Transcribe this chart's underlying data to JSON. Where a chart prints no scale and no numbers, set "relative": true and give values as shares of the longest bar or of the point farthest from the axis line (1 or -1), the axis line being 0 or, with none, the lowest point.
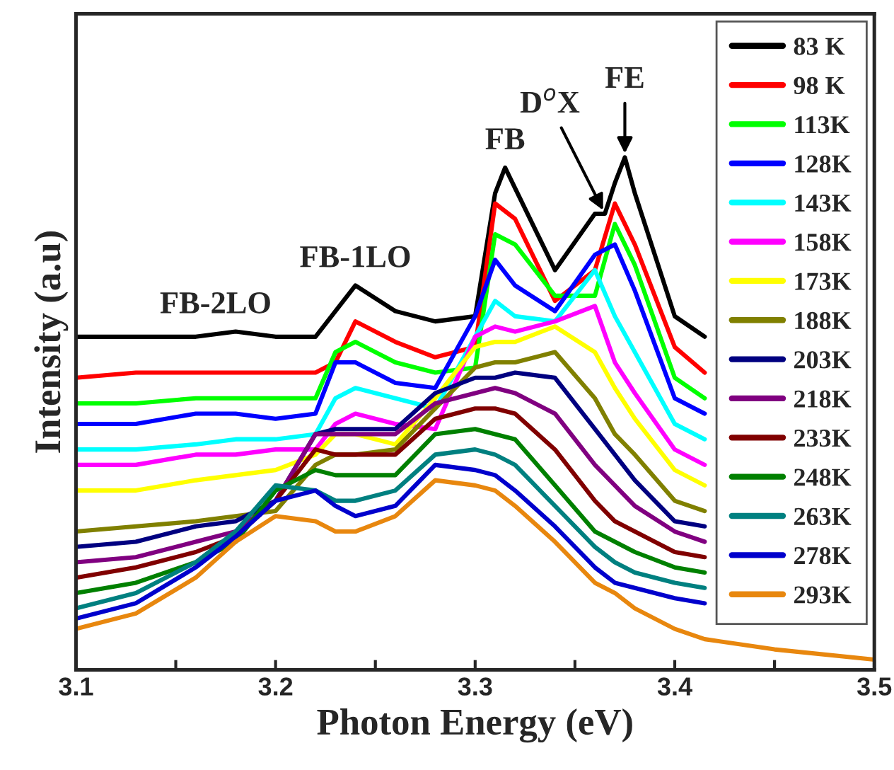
{
  "chart_data": {
    "type": "line",
    "relative": true,
    "xlabel": "Photon Energy (eV)",
    "ylabel": "Intensity (a.u)",
    "xlim": [
      3.1,
      3.5
    ],
    "xticks": [
      3.1,
      {
        "value": 3.15,
        "label": null
      },
      3.2,
      {
        "value": 3.25,
        "label": null
      },
      3.3,
      {
        "value": 3.35,
        "label": null
      },
      3.4,
      {
        "value": 3.45,
        "label": null
      },
      3.5
    ],
    "tick_labels": "x",
    "legend": "top right",
    "grid": false,
    "marker": "none",
    "line_style": "solid",
    "x": [
      3.1,
      3.13,
      3.16,
      3.18,
      3.2,
      3.22,
      3.23,
      3.24,
      3.26,
      3.28,
      3.3,
      3.31,
      3.32,
      3.34,
      3.36,
      3.37,
      3.38,
      3.4,
      3.415
    ],
    "series": [
      {
        "name": "83 K",
        "color": "#000000",
        "x": [
          3.1,
          3.13,
          3.16,
          3.18,
          3.2,
          3.22,
          3.23,
          3.24,
          3.26,
          3.28,
          3.3,
          3.31,
          3.315,
          3.32,
          3.34,
          3.36,
          3.365,
          3.37,
          3.375,
          3.38,
          3.4,
          3.415
        ],
        "values": [
          0.65,
          0.65,
          0.65,
          0.66,
          0.65,
          0.65,
          0.7,
          0.75,
          0.7,
          0.68,
          0.69,
          0.93,
          0.98,
          0.94,
          0.78,
          0.89,
          0.89,
          0.95,
          1.0,
          0.93,
          0.69,
          0.65
        ]
      },
      {
        "name": "98 K",
        "color": "#ff0000",
        "values": [
          0.57,
          0.58,
          0.58,
          0.58,
          0.58,
          0.58,
          0.6,
          0.68,
          0.64,
          0.61,
          0.63,
          0.91,
          0.88,
          0.72,
          0.78,
          0.91,
          0.83,
          0.63,
          0.58
        ]
      },
      {
        "name": "113K",
        "color": "#00ff00",
        "values": [
          0.52,
          0.52,
          0.53,
          0.53,
          0.53,
          0.53,
          0.62,
          0.64,
          0.6,
          0.58,
          0.59,
          0.85,
          0.83,
          0.73,
          0.73,
          0.87,
          0.79,
          0.57,
          0.53
        ]
      },
      {
        "name": "128K",
        "color": "#0000ff",
        "values": [
          0.48,
          0.48,
          0.5,
          0.5,
          0.49,
          0.5,
          0.6,
          0.6,
          0.56,
          0.55,
          0.69,
          0.8,
          0.75,
          0.7,
          0.81,
          0.83,
          0.74,
          0.53,
          0.5
        ]
      },
      {
        "name": "143K",
        "color": "#00ffff",
        "values": [
          0.43,
          0.43,
          0.44,
          0.45,
          0.45,
          0.46,
          0.53,
          0.55,
          0.53,
          0.51,
          0.65,
          0.72,
          0.69,
          0.68,
          0.78,
          0.69,
          0.62,
          0.48,
          0.45
        ]
      },
      {
        "name": "158K",
        "color": "#ff00ff",
        "values": [
          0.4,
          0.4,
          0.42,
          0.42,
          0.43,
          0.43,
          0.48,
          0.5,
          0.48,
          0.47,
          0.65,
          0.67,
          0.66,
          0.68,
          0.71,
          0.6,
          0.54,
          0.43,
          0.4
        ]
      },
      {
        "name": "173K",
        "color": "#ffff00",
        "values": [
          0.35,
          0.35,
          0.37,
          0.38,
          0.39,
          0.42,
          0.46,
          0.46,
          0.44,
          0.53,
          0.63,
          0.64,
          0.64,
          0.67,
          0.62,
          0.55,
          0.49,
          0.39,
          0.36
        ]
      },
      {
        "name": "188K",
        "color": "#808000",
        "values": [
          0.27,
          0.28,
          0.29,
          0.3,
          0.31,
          0.4,
          0.42,
          0.42,
          0.43,
          0.51,
          0.59,
          0.6,
          0.6,
          0.62,
          0.53,
          0.46,
          0.42,
          0.33,
          0.31
        ]
      },
      {
        "name": "203K",
        "color": "#000080",
        "values": [
          0.24,
          0.25,
          0.28,
          0.29,
          0.33,
          0.46,
          0.47,
          0.47,
          0.47,
          0.54,
          0.57,
          0.57,
          0.58,
          0.57,
          0.47,
          0.42,
          0.37,
          0.29,
          0.28
        ]
      },
      {
        "name": "218K",
        "color": "#800080",
        "values": [
          0.21,
          0.22,
          0.25,
          0.27,
          0.33,
          0.46,
          0.46,
          0.46,
          0.46,
          0.52,
          0.54,
          0.55,
          0.54,
          0.5,
          0.4,
          0.36,
          0.32,
          0.27,
          0.25
        ]
      },
      {
        "name": "233K",
        "color": "#800000",
        "values": [
          0.18,
          0.2,
          0.23,
          0.26,
          0.33,
          0.43,
          0.42,
          0.42,
          0.42,
          0.49,
          0.51,
          0.51,
          0.5,
          0.43,
          0.33,
          0.29,
          0.27,
          0.23,
          0.22
        ]
      },
      {
        "name": "248K",
        "color": "#008000",
        "values": [
          0.15,
          0.17,
          0.21,
          0.25,
          0.35,
          0.39,
          0.38,
          0.38,
          0.38,
          0.46,
          0.47,
          0.46,
          0.45,
          0.36,
          0.27,
          0.25,
          0.23,
          0.2,
          0.19
        ]
      },
      {
        "name": "263K",
        "color": "#008080",
        "values": [
          0.12,
          0.15,
          0.21,
          0.27,
          0.36,
          0.35,
          0.33,
          0.33,
          0.35,
          0.42,
          0.43,
          0.42,
          0.4,
          0.32,
          0.24,
          0.21,
          0.19,
          0.17,
          0.16
        ]
      },
      {
        "name": "278K",
        "color": "#0000cc",
        "values": [
          0.1,
          0.13,
          0.2,
          0.26,
          0.33,
          0.35,
          0.32,
          0.3,
          0.32,
          0.4,
          0.39,
          0.38,
          0.35,
          0.28,
          0.2,
          0.17,
          0.16,
          0.14,
          0.13
        ]
      },
      {
        "name": "293K",
        "color": "#e8870e",
        "x": [
          3.1,
          3.13,
          3.16,
          3.18,
          3.2,
          3.22,
          3.23,
          3.24,
          3.26,
          3.28,
          3.3,
          3.31,
          3.32,
          3.34,
          3.36,
          3.37,
          3.38,
          3.4,
          3.415,
          3.45,
          3.5
        ],
        "values": [
          0.08,
          0.11,
          0.18,
          0.25,
          0.3,
          0.29,
          0.27,
          0.27,
          0.3,
          0.37,
          0.36,
          0.35,
          0.32,
          0.25,
          0.17,
          0.15,
          0.12,
          0.08,
          0.06,
          0.04,
          0.02
        ]
      }
    ],
    "annotations": [
      {
        "text": "FB-2LO",
        "x": 3.17,
        "y": 0.66
      },
      {
        "text": "FB-1LO",
        "x": 3.24,
        "y": 0.75
      },
      {
        "text": "FB",
        "x": 3.315,
        "y": 0.98
      },
      {
        "text": "D$^{o}$X",
        "x": 3.365,
        "y": 0.89
      },
      {
        "text": "FE",
        "x": 3.375,
        "y": 1.0
      }
    ]
  }
}
